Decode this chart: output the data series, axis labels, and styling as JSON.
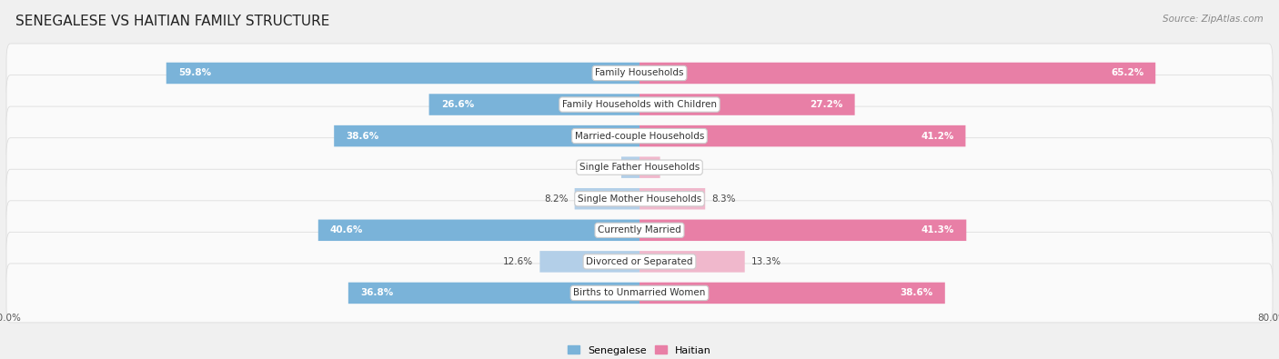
{
  "title": "SENEGALESE VS HAITIAN FAMILY STRUCTURE",
  "source": "Source: ZipAtlas.com",
  "categories": [
    "Family Households",
    "Family Households with Children",
    "Married-couple Households",
    "Single Father Households",
    "Single Mother Households",
    "Currently Married",
    "Divorced or Separated",
    "Births to Unmarried Women"
  ],
  "senegalese": [
    59.8,
    26.6,
    38.6,
    2.3,
    8.2,
    40.6,
    12.6,
    36.8
  ],
  "haitian": [
    65.2,
    27.2,
    41.2,
    2.6,
    8.3,
    41.3,
    13.3,
    38.6
  ],
  "max_val": 80.0,
  "blue_color": "#7ab3d9",
  "pink_color": "#e87fa6",
  "blue_light": "#b3cfe8",
  "pink_light": "#f0b8cc",
  "bg_color": "#f0f0f0",
  "row_bg_light": "#fafafa",
  "row_bg_dark": "#f0f0f0",
  "row_border": "#dddddd",
  "title_fontsize": 11,
  "label_fontsize": 7.5,
  "value_fontsize": 7.5,
  "source_fontsize": 7.5,
  "inner_value_threshold": 15
}
